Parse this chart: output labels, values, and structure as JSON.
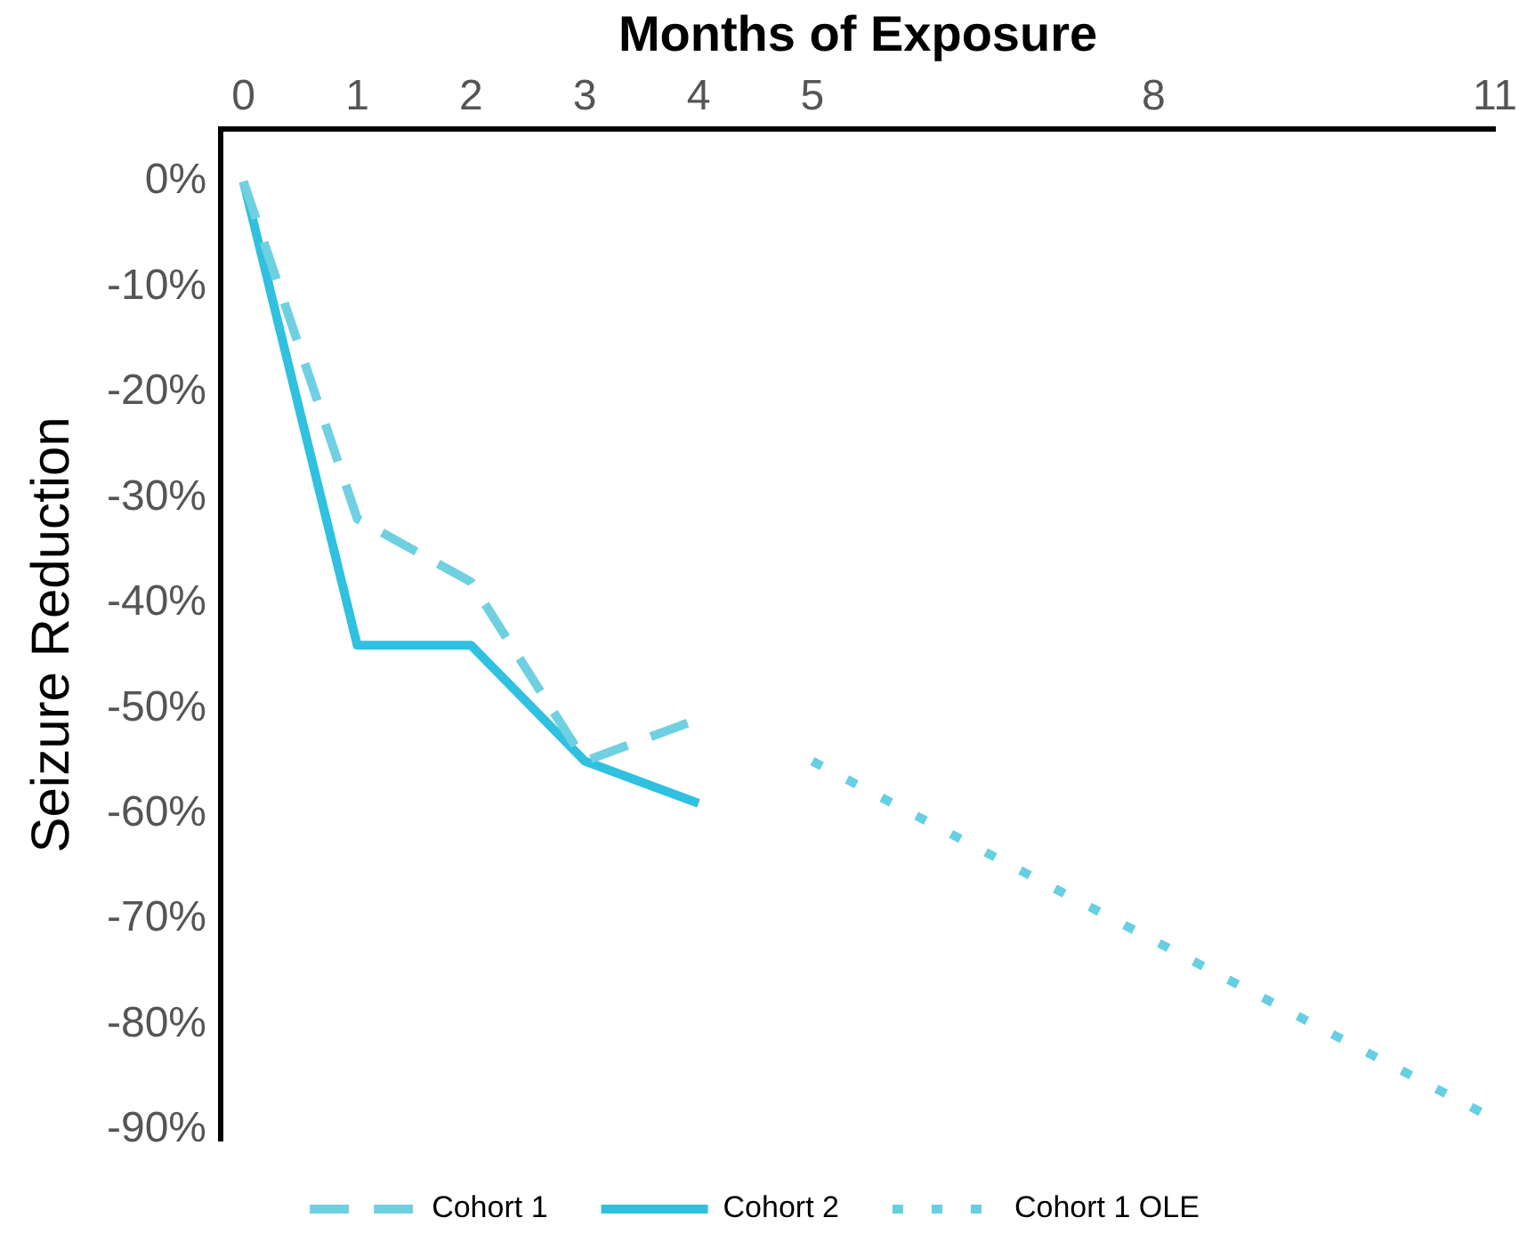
{
  "chart_data": {
    "type": "line",
    "xlabel": "Months of Exposure",
    "ylabel": "Seizure Reduction",
    "xlim": [
      -0.2,
      11
    ],
    "xticks": [
      0,
      1,
      2,
      3,
      4,
      5,
      8,
      11
    ],
    "ylim": [
      -91,
      5
    ],
    "yticks": [
      {
        "value": 0,
        "label": "0%"
      },
      {
        "value": -10,
        "label": "-10%"
      },
      {
        "value": -20,
        "label": "-20%"
      },
      {
        "value": -30,
        "label": "-30%"
      },
      {
        "value": -40,
        "label": "-40%"
      },
      {
        "value": -50,
        "label": "-50%"
      },
      {
        "value": -60,
        "label": "-60%"
      },
      {
        "value": -70,
        "label": "-70%"
      },
      {
        "value": -80,
        "label": "-80%"
      },
      {
        "value": -90,
        "label": "-90%"
      }
    ],
    "grid": false,
    "legend": "bottom",
    "marker": "none",
    "series": [
      {
        "name": "Cohort 1",
        "color": "#6fd0e2",
        "line_style": "dashed",
        "x": [
          0,
          1,
          2,
          3,
          4
        ],
        "values": [
          0,
          -32,
          -38,
          -55,
          -51
        ]
      },
      {
        "name": "Cohort 2",
        "color": "#30c0e0",
        "line_style": "solid",
        "x": [
          0,
          1,
          2,
          3,
          4
        ],
        "values": [
          0,
          -44,
          -44,
          -55,
          -59
        ]
      },
      {
        "name": "Cohort 1 OLE",
        "color": "#66cfe2",
        "line_style": "dotted",
        "x": [
          5,
          11
        ],
        "values": [
          -55,
          -89
        ]
      }
    ]
  }
}
